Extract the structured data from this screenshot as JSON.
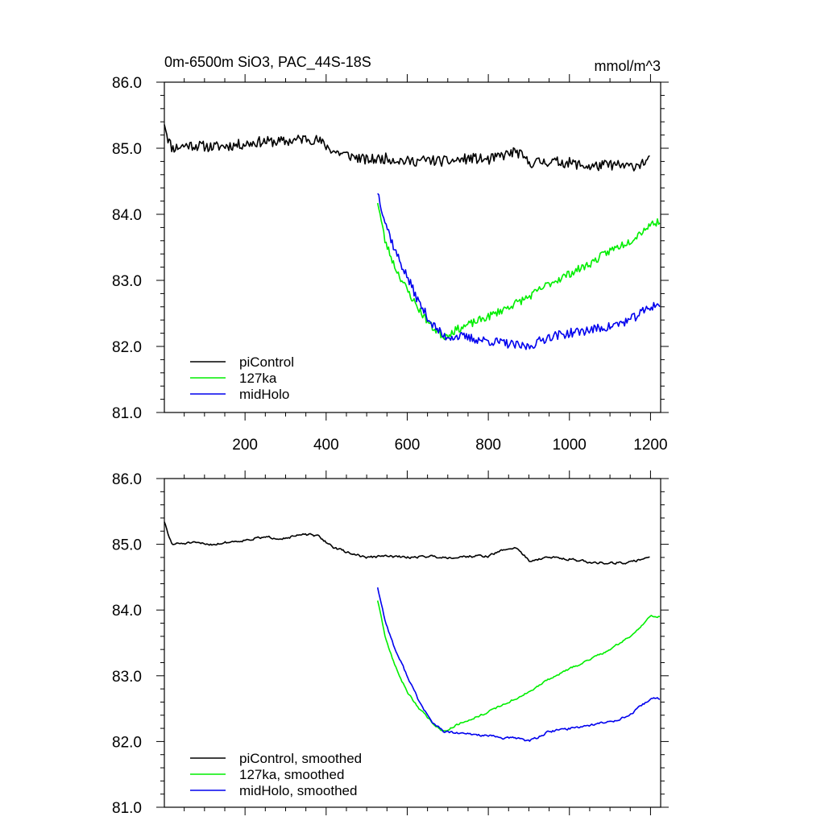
{
  "page": {
    "title": "0m-6500m SiO3, PAC_44S-18S",
    "units": "mmol/m^3"
  },
  "colors": {
    "piControl": "#000000",
    "127ka": "#00ee00",
    "midHolo": "#0000ee"
  },
  "chart_data": [
    {
      "type": "line",
      "xlim": [
        1,
        1225
      ],
      "ylim": [
        81,
        86
      ],
      "y_ticks": [
        "81.0",
        "82.0",
        "83.0",
        "84.0",
        "85.0",
        "86.0"
      ],
      "x_ticks": [
        "200",
        "400",
        "600",
        "800",
        "1000",
        "1200"
      ],
      "x_tick_values": [
        200,
        400,
        600,
        800,
        1000,
        1200
      ],
      "legend_position": "bottom-left",
      "smoothed": false,
      "series": [
        {
          "key": "piControl",
          "name": "piControl",
          "x_start": 1,
          "x_end": 1200,
          "anchors": [
            [
              1,
              85.4
            ],
            [
              10,
              85.15
            ],
            [
              20,
              85.0
            ],
            [
              60,
              85.05
            ],
            [
              120,
              85.02
            ],
            [
              180,
              85.05
            ],
            [
              240,
              85.1
            ],
            [
              300,
              85.1
            ],
            [
              350,
              85.15
            ],
            [
              380,
              85.12
            ],
            [
              420,
              84.95
            ],
            [
              450,
              84.9
            ],
            [
              500,
              84.82
            ],
            [
              550,
              84.85
            ],
            [
              600,
              84.8
            ],
            [
              650,
              84.82
            ],
            [
              700,
              84.8
            ],
            [
              760,
              84.85
            ],
            [
              800,
              84.82
            ],
            [
              840,
              84.9
            ],
            [
              870,
              84.95
            ],
            [
              900,
              84.78
            ],
            [
              950,
              84.8
            ],
            [
              1000,
              84.78
            ],
            [
              1050,
              84.72
            ],
            [
              1100,
              84.75
            ],
            [
              1150,
              84.72
            ],
            [
              1200,
              84.82
            ]
          ],
          "noise": 0.08,
          "seed": 11
        },
        {
          "key": "127ka",
          "name": "127ka",
          "x_start": 527,
          "x_end": 1225,
          "anchors": [
            [
              527,
              84.2
            ],
            [
              545,
              83.6
            ],
            [
              570,
              83.2
            ],
            [
              600,
              82.85
            ],
            [
              630,
              82.55
            ],
            [
              660,
              82.3
            ],
            [
              690,
              82.15
            ],
            [
              720,
              82.25
            ],
            [
              760,
              82.35
            ],
            [
              800,
              82.45
            ],
            [
              850,
              82.6
            ],
            [
              900,
              82.75
            ],
            [
              950,
              82.95
            ],
            [
              1000,
              83.1
            ],
            [
              1050,
              83.25
            ],
            [
              1100,
              83.45
            ],
            [
              1150,
              83.6
            ],
            [
              1200,
              83.85
            ],
            [
              1225,
              83.9
            ]
          ],
          "noise": 0.06,
          "seed": 23
        },
        {
          "key": "midHolo",
          "name": "midHolo",
          "x_start": 527,
          "x_end": 1225,
          "anchors": [
            [
              527,
              84.35
            ],
            [
              545,
              83.9
            ],
            [
              570,
              83.45
            ],
            [
              600,
              83.05
            ],
            [
              630,
              82.65
            ],
            [
              660,
              82.35
            ],
            [
              690,
              82.15
            ],
            [
              730,
              82.15
            ],
            [
              780,
              82.1
            ],
            [
              840,
              82.05
            ],
            [
              880,
              82.0
            ],
            [
              900,
              82.0
            ],
            [
              950,
              82.15
            ],
            [
              1000,
              82.2
            ],
            [
              1050,
              82.25
            ],
            [
              1100,
              82.3
            ],
            [
              1150,
              82.4
            ],
            [
              1200,
              82.6
            ],
            [
              1225,
              82.65
            ]
          ],
          "noise": 0.07,
          "seed": 37
        }
      ]
    },
    {
      "type": "line",
      "xlim": [
        1,
        1225
      ],
      "ylim": [
        81,
        86
      ],
      "y_ticks": [
        "81.0",
        "82.0",
        "83.0",
        "84.0",
        "85.0",
        "86.0"
      ],
      "x_ticks": [],
      "x_tick_values": [
        200,
        400,
        600,
        800,
        1000,
        1200
      ],
      "legend_position": "bottom-left",
      "smoothed": true,
      "series": [
        {
          "key": "piControl",
          "name": "piControl, smoothed",
          "x_start": 1,
          "x_end": 1200,
          "anchors": [
            [
              1,
              85.35
            ],
            [
              10,
              85.15
            ],
            [
              20,
              85.0
            ],
            [
              60,
              85.02
            ],
            [
              120,
              85.0
            ],
            [
              180,
              85.05
            ],
            [
              240,
              85.1
            ],
            [
              300,
              85.1
            ],
            [
              350,
              85.15
            ],
            [
              380,
              85.12
            ],
            [
              420,
              84.95
            ],
            [
              450,
              84.88
            ],
            [
              500,
              84.8
            ],
            [
              550,
              84.82
            ],
            [
              600,
              84.8
            ],
            [
              650,
              84.82
            ],
            [
              700,
              84.8
            ],
            [
              760,
              84.82
            ],
            [
              800,
              84.82
            ],
            [
              840,
              84.92
            ],
            [
              870,
              84.95
            ],
            [
              900,
              84.75
            ],
            [
              950,
              84.8
            ],
            [
              1000,
              84.78
            ],
            [
              1050,
              84.72
            ],
            [
              1100,
              84.72
            ],
            [
              1150,
              84.72
            ],
            [
              1200,
              84.82
            ]
          ],
          "noise": 0.035,
          "seed": 51
        },
        {
          "key": "127ka",
          "name": "127ka, smoothed",
          "x_start": 527,
          "x_end": 1225,
          "anchors": [
            [
              527,
              84.15
            ],
            [
              545,
              83.6
            ],
            [
              570,
              83.15
            ],
            [
              600,
              82.75
            ],
            [
              630,
              82.5
            ],
            [
              660,
              82.3
            ],
            [
              690,
              82.15
            ],
            [
              720,
              82.25
            ],
            [
              760,
              82.35
            ],
            [
              800,
              82.45
            ],
            [
              850,
              82.6
            ],
            [
              900,
              82.75
            ],
            [
              950,
              82.95
            ],
            [
              1000,
              83.1
            ],
            [
              1050,
              83.25
            ],
            [
              1100,
              83.4
            ],
            [
              1150,
              83.6
            ],
            [
              1200,
              83.9
            ],
            [
              1225,
              83.9
            ]
          ],
          "noise": 0.03,
          "seed": 63
        },
        {
          "key": "midHolo",
          "name": "midHolo, smoothed",
          "x_start": 527,
          "x_end": 1225,
          "anchors": [
            [
              527,
              84.35
            ],
            [
              545,
              83.85
            ],
            [
              570,
              83.4
            ],
            [
              600,
              83.0
            ],
            [
              630,
              82.6
            ],
            [
              660,
              82.3
            ],
            [
              690,
              82.15
            ],
            [
              730,
              82.12
            ],
            [
              780,
              82.1
            ],
            [
              840,
              82.05
            ],
            [
              880,
              82.05
            ],
            [
              900,
              82.0
            ],
            [
              950,
              82.15
            ],
            [
              1000,
              82.2
            ],
            [
              1050,
              82.25
            ],
            [
              1100,
              82.3
            ],
            [
              1150,
              82.4
            ],
            [
              1200,
              82.65
            ],
            [
              1225,
              82.65
            ]
          ],
          "noise": 0.035,
          "seed": 77
        }
      ]
    }
  ]
}
